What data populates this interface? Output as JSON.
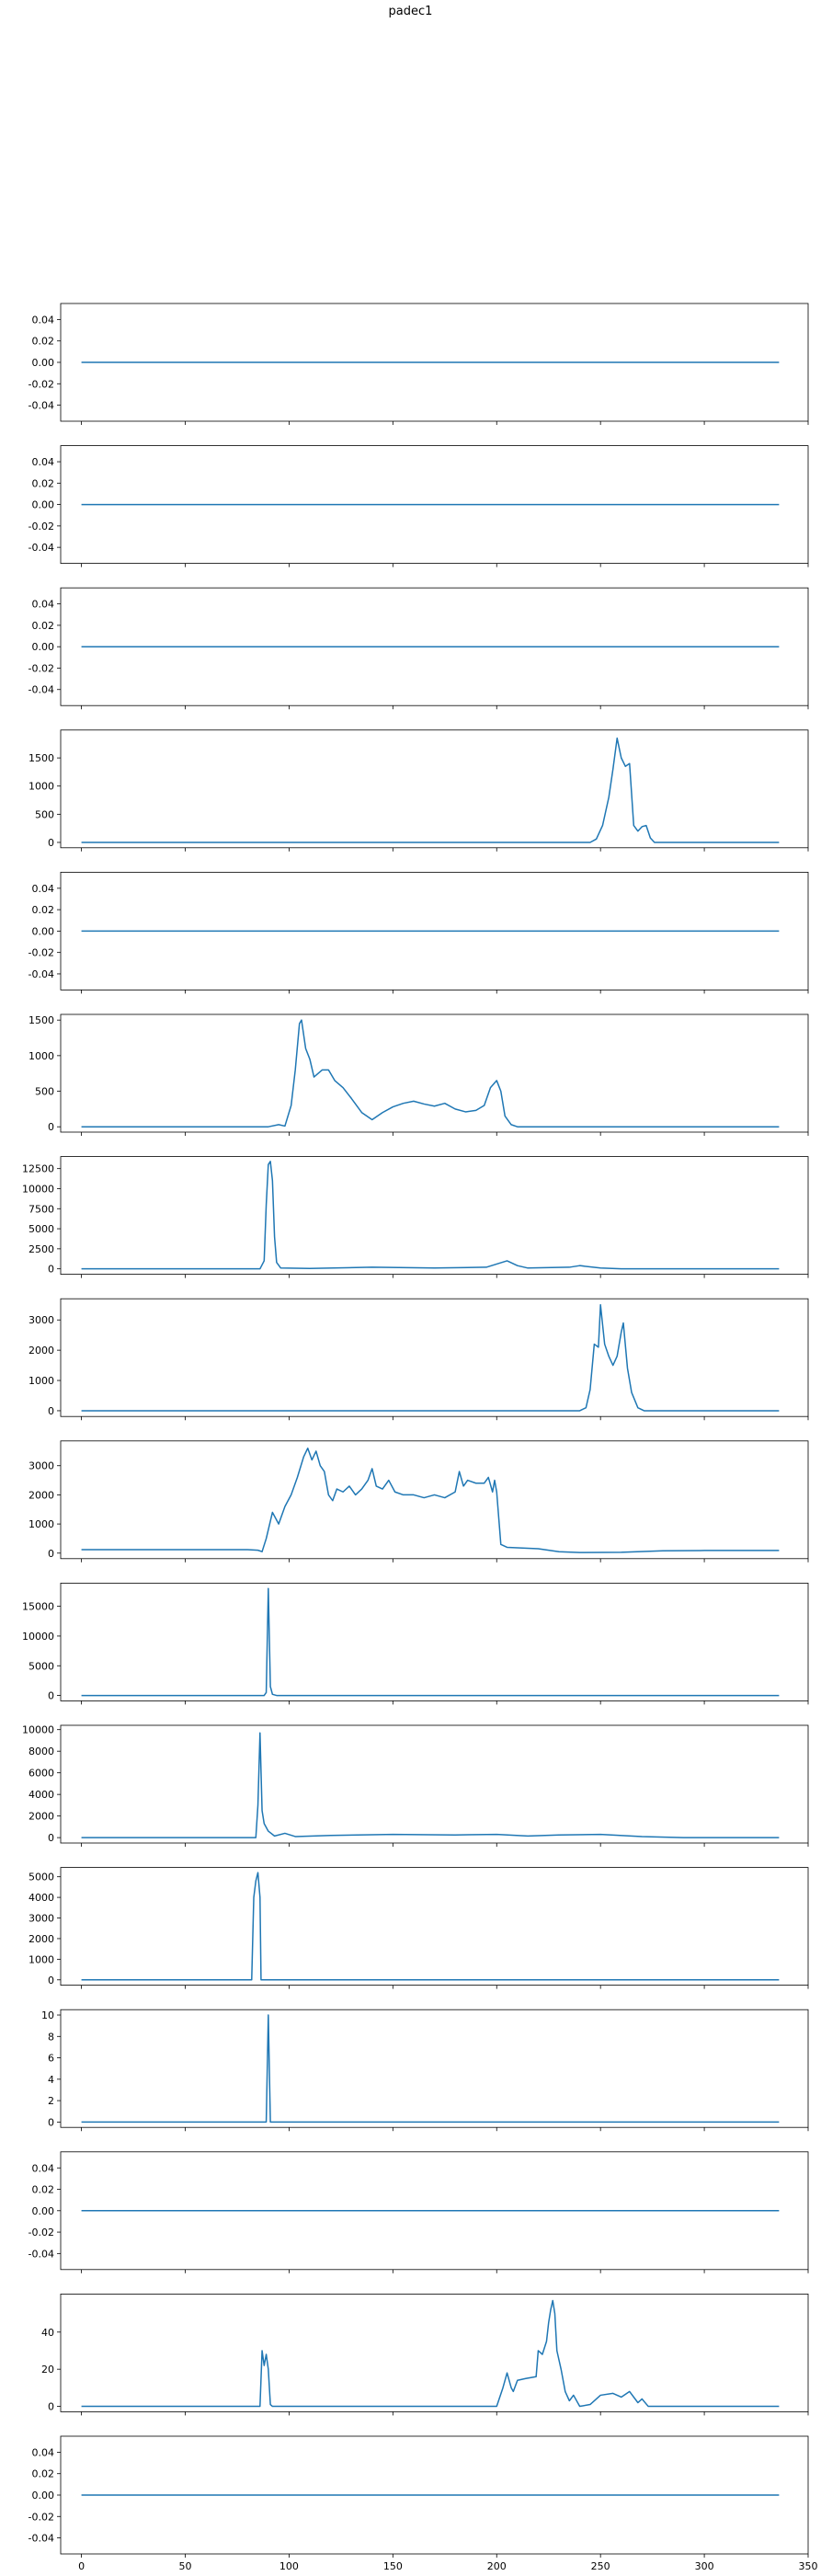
{
  "figure": {
    "title": "padec1"
  },
  "chart_data": {
    "type": "line",
    "title": "padec1",
    "line_color": "#1f77b4",
    "sharex": true,
    "xlim": [
      -10,
      350
    ],
    "x_ticks": [
      0,
      50,
      100,
      150,
      200,
      250,
      300,
      350
    ],
    "x_tick_labels": [
      "0",
      "50",
      "100",
      "150",
      "200",
      "250",
      "300",
      "350"
    ],
    "n_points": 337,
    "grid": false,
    "subplots": [
      {
        "ylim": [
          -0.055,
          0.055
        ],
        "y_ticks": [
          -0.04,
          -0.02,
          0.0,
          0.02,
          0.04
        ],
        "y_tick_labels": [
          "-0.04",
          "-0.02",
          "0.00",
          "0.02",
          "0.04"
        ],
        "baseline": 0,
        "points": [
          [
            0,
            0
          ],
          [
            336,
            0
          ]
        ]
      },
      {
        "ylim": [
          -0.055,
          0.055
        ],
        "y_ticks": [
          -0.04,
          -0.02,
          0.0,
          0.02,
          0.04
        ],
        "y_tick_labels": [
          "-0.04",
          "-0.02",
          "0.00",
          "0.02",
          "0.04"
        ],
        "baseline": 0,
        "points": [
          [
            0,
            0
          ],
          [
            336,
            0
          ]
        ]
      },
      {
        "ylim": [
          -0.055,
          0.055
        ],
        "y_ticks": [
          -0.04,
          -0.02,
          0.0,
          0.02,
          0.04
        ],
        "y_tick_labels": [
          "-0.04",
          "-0.02",
          "0.00",
          "0.02",
          "0.04"
        ],
        "baseline": 0,
        "points": [
          [
            0,
            0
          ],
          [
            336,
            0
          ]
        ]
      },
      {
        "ylim": [
          -95,
          1995
        ],
        "y_ticks": [
          0,
          500,
          1000,
          1500
        ],
        "y_tick_labels": [
          "0",
          "500",
          "1000",
          "1500"
        ],
        "baseline": 0,
        "points": [
          [
            0,
            0
          ],
          [
            245,
            0
          ],
          [
            248,
            60
          ],
          [
            251,
            300
          ],
          [
            254,
            800
          ],
          [
            256,
            1300
          ],
          [
            258,
            1850
          ],
          [
            260,
            1500
          ],
          [
            262,
            1350
          ],
          [
            264,
            1400
          ],
          [
            266,
            300
          ],
          [
            268,
            200
          ],
          [
            270,
            280
          ],
          [
            272,
            300
          ],
          [
            274,
            80
          ],
          [
            276,
            0
          ],
          [
            336,
            0
          ]
        ]
      },
      {
        "ylim": [
          -0.055,
          0.055
        ],
        "y_ticks": [
          -0.04,
          -0.02,
          0.0,
          0.02,
          0.04
        ],
        "y_tick_labels": [
          "-0.04",
          "-0.02",
          "0.00",
          "0.02",
          "0.04"
        ],
        "baseline": 0,
        "points": [
          [
            0,
            0
          ],
          [
            336,
            0
          ]
        ]
      },
      {
        "ylim": [
          -75,
          1580
        ],
        "y_ticks": [
          0,
          500,
          1000,
          1500
        ],
        "y_tick_labels": [
          "0",
          "500",
          "1000",
          "1500"
        ],
        "baseline": 0,
        "points": [
          [
            0,
            0
          ],
          [
            90,
            0
          ],
          [
            95,
            30
          ],
          [
            98,
            10
          ],
          [
            101,
            300
          ],
          [
            103,
            800
          ],
          [
            105,
            1450
          ],
          [
            106,
            1500
          ],
          [
            108,
            1100
          ],
          [
            110,
            950
          ],
          [
            112,
            700
          ],
          [
            116,
            800
          ],
          [
            119,
            800
          ],
          [
            122,
            650
          ],
          [
            126,
            550
          ],
          [
            130,
            400
          ],
          [
            135,
            200
          ],
          [
            140,
            100
          ],
          [
            145,
            200
          ],
          [
            150,
            280
          ],
          [
            155,
            330
          ],
          [
            160,
            360
          ],
          [
            165,
            320
          ],
          [
            170,
            290
          ],
          [
            175,
            330
          ],
          [
            180,
            250
          ],
          [
            185,
            210
          ],
          [
            190,
            230
          ],
          [
            194,
            300
          ],
          [
            197,
            550
          ],
          [
            200,
            650
          ],
          [
            202,
            500
          ],
          [
            204,
            150
          ],
          [
            207,
            30
          ],
          [
            210,
            0
          ],
          [
            336,
            0
          ]
        ]
      },
      {
        "ylim": [
          -680,
          14000
        ],
        "y_ticks": [
          0,
          2500,
          5000,
          7500,
          10000,
          12500
        ],
        "y_tick_labels": [
          "0",
          "2500",
          "5000",
          "7500",
          "10000",
          "12500"
        ],
        "baseline": 0,
        "points": [
          [
            0,
            0
          ],
          [
            86,
            0
          ],
          [
            88,
            1000
          ],
          [
            89,
            8000
          ],
          [
            90,
            13000
          ],
          [
            91,
            13400
          ],
          [
            92,
            11000
          ],
          [
            93,
            4000
          ],
          [
            94,
            800
          ],
          [
            96,
            100
          ],
          [
            110,
            50
          ],
          [
            140,
            200
          ],
          [
            170,
            100
          ],
          [
            195,
            200
          ],
          [
            200,
            600
          ],
          [
            205,
            1000
          ],
          [
            210,
            400
          ],
          [
            215,
            100
          ],
          [
            235,
            200
          ],
          [
            240,
            400
          ],
          [
            250,
            100
          ],
          [
            260,
            0
          ],
          [
            336,
            0
          ]
        ]
      },
      {
        "ylim": [
          -190,
          3700
        ],
        "y_ticks": [
          0,
          1000,
          2000,
          3000
        ],
        "y_tick_labels": [
          "0",
          "1000",
          "2000",
          "3000"
        ],
        "baseline": 0,
        "points": [
          [
            0,
            0
          ],
          [
            240,
            0
          ],
          [
            243,
            100
          ],
          [
            245,
            700
          ],
          [
            247,
            2200
          ],
          [
            249,
            2100
          ],
          [
            250,
            3500
          ],
          [
            252,
            2200
          ],
          [
            254,
            1800
          ],
          [
            256,
            1500
          ],
          [
            258,
            1800
          ],
          [
            260,
            2600
          ],
          [
            261,
            2900
          ],
          [
            263,
            1400
          ],
          [
            265,
            600
          ],
          [
            268,
            100
          ],
          [
            271,
            0
          ],
          [
            336,
            0
          ]
        ]
      },
      {
        "ylim": [
          -190,
          3850
        ],
        "y_ticks": [
          0,
          1000,
          2000,
          3000
        ],
        "y_tick_labels": [
          "0",
          "1000",
          "2000",
          "3000"
        ],
        "baseline": 0,
        "points": [
          [
            0,
            120
          ],
          [
            50,
            120
          ],
          [
            80,
            120
          ],
          [
            85,
            100
          ],
          [
            87,
            50
          ],
          [
            89,
            500
          ],
          [
            92,
            1400
          ],
          [
            95,
            1000
          ],
          [
            98,
            1600
          ],
          [
            101,
            2000
          ],
          [
            104,
            2600
          ],
          [
            107,
            3300
          ],
          [
            109,
            3600
          ],
          [
            111,
            3200
          ],
          [
            113,
            3500
          ],
          [
            115,
            3000
          ],
          [
            117,
            2800
          ],
          [
            119,
            2000
          ],
          [
            121,
            1800
          ],
          [
            123,
            2200
          ],
          [
            126,
            2100
          ],
          [
            129,
            2300
          ],
          [
            132,
            2000
          ],
          [
            135,
            2200
          ],
          [
            138,
            2500
          ],
          [
            140,
            2900
          ],
          [
            142,
            2300
          ],
          [
            145,
            2200
          ],
          [
            148,
            2500
          ],
          [
            151,
            2100
          ],
          [
            155,
            2000
          ],
          [
            160,
            2000
          ],
          [
            165,
            1900
          ],
          [
            170,
            2000
          ],
          [
            175,
            1900
          ],
          [
            180,
            2100
          ],
          [
            182,
            2800
          ],
          [
            184,
            2300
          ],
          [
            186,
            2500
          ],
          [
            190,
            2400
          ],
          [
            194,
            2400
          ],
          [
            196,
            2600
          ],
          [
            198,
            2100
          ],
          [
            199,
            2500
          ],
          [
            200,
            2100
          ],
          [
            202,
            300
          ],
          [
            205,
            200
          ],
          [
            220,
            150
          ],
          [
            230,
            50
          ],
          [
            240,
            20
          ],
          [
            260,
            30
          ],
          [
            280,
            80
          ],
          [
            300,
            90
          ],
          [
            336,
            90
          ]
        ]
      },
      {
        "ylim": [
          -900,
          18900
        ],
        "y_ticks": [
          0,
          5000,
          10000,
          15000
        ],
        "y_tick_labels": [
          "0",
          "5000",
          "10000",
          "15000"
        ],
        "baseline": 0,
        "points": [
          [
            0,
            0
          ],
          [
            88,
            0
          ],
          [
            89,
            500
          ],
          [
            90,
            18000
          ],
          [
            91,
            1500
          ],
          [
            92,
            200
          ],
          [
            94,
            0
          ],
          [
            336,
            0
          ]
        ]
      },
      {
        "ylim": [
          -500,
          10400
        ],
        "y_ticks": [
          0,
          2000,
          4000,
          6000,
          8000,
          10000
        ],
        "y_tick_labels": [
          "0",
          "2000",
          "4000",
          "6000",
          "8000",
          "10000"
        ],
        "baseline": 0,
        "points": [
          [
            0,
            0
          ],
          [
            84,
            0
          ],
          [
            85,
            3000
          ],
          [
            86,
            9700
          ],
          [
            87,
            2500
          ],
          [
            88,
            1300
          ],
          [
            90,
            600
          ],
          [
            93,
            150
          ],
          [
            98,
            400
          ],
          [
            103,
            100
          ],
          [
            120,
            200
          ],
          [
            150,
            300
          ],
          [
            180,
            250
          ],
          [
            200,
            300
          ],
          [
            215,
            150
          ],
          [
            230,
            250
          ],
          [
            250,
            300
          ],
          [
            270,
            100
          ],
          [
            290,
            0
          ],
          [
            336,
            0
          ]
        ]
      },
      {
        "ylim": [
          -260,
          5450
        ],
        "y_ticks": [
          0,
          1000,
          2000,
          3000,
          4000,
          5000
        ],
        "y_tick_labels": [
          "0",
          "1000",
          "2000",
          "3000",
          "4000",
          "5000"
        ],
        "baseline": 0,
        "points": [
          [
            0,
            0
          ],
          [
            82,
            0
          ],
          [
            83,
            4000
          ],
          [
            84,
            4800
          ],
          [
            85,
            5200
          ],
          [
            86,
            4000
          ],
          [
            86.5,
            0
          ],
          [
            336,
            0
          ]
        ]
      },
      {
        "ylim": [
          -0.5,
          10.5
        ],
        "y_ticks": [
          0,
          2,
          4,
          6,
          8,
          10
        ],
        "y_tick_labels": [
          "0",
          "2",
          "4",
          "6",
          "8",
          "10"
        ],
        "baseline": 0,
        "points": [
          [
            0,
            0
          ],
          [
            89,
            0
          ],
          [
            90,
            10
          ],
          [
            91,
            0
          ],
          [
            336,
            0
          ]
        ]
      },
      {
        "ylim": [
          -0.055,
          0.055
        ],
        "y_ticks": [
          -0.04,
          -0.02,
          0.0,
          0.02,
          0.04
        ],
        "y_tick_labels": [
          "-0.04",
          "-0.02",
          "0.00",
          "0.02",
          "0.04"
        ],
        "baseline": 0,
        "points": [
          [
            0,
            0
          ],
          [
            336,
            0
          ]
        ]
      },
      {
        "ylim": [
          -2.9,
          60.5
        ],
        "y_ticks": [
          0,
          20,
          40
        ],
        "y_tick_labels": [
          "0",
          "20",
          "40"
        ],
        "baseline": 0,
        "points": [
          [
            0,
            0
          ],
          [
            86,
            0
          ],
          [
            87,
            30
          ],
          [
            88,
            22
          ],
          [
            89,
            28
          ],
          [
            90,
            20
          ],
          [
            91,
            1
          ],
          [
            92,
            0
          ],
          [
            200,
            0
          ],
          [
            203,
            10
          ],
          [
            205,
            18
          ],
          [
            207,
            10
          ],
          [
            208,
            8
          ],
          [
            210,
            14
          ],
          [
            214,
            15
          ],
          [
            219,
            16
          ],
          [
            220,
            30
          ],
          [
            222,
            28
          ],
          [
            224,
            35
          ],
          [
            225,
            45
          ],
          [
            226,
            52
          ],
          [
            227,
            57
          ],
          [
            228,
            50
          ],
          [
            229,
            30
          ],
          [
            231,
            20
          ],
          [
            233,
            8
          ],
          [
            235,
            3
          ],
          [
            237,
            6
          ],
          [
            240,
            0
          ],
          [
            245,
            1
          ],
          [
            250,
            6
          ],
          [
            256,
            7
          ],
          [
            260,
            5
          ],
          [
            264,
            8
          ],
          [
            268,
            2
          ],
          [
            270,
            4
          ],
          [
            273,
            0
          ],
          [
            336,
            0
          ]
        ]
      },
      {
        "ylim": [
          -0.055,
          0.055
        ],
        "y_ticks": [
          -0.04,
          -0.02,
          0.0,
          0.02,
          0.04
        ],
        "y_tick_labels": [
          "-0.04",
          "-0.02",
          "0.00",
          "0.02",
          "0.04"
        ],
        "baseline": 0,
        "points": [
          [
            0,
            0
          ],
          [
            336,
            0
          ]
        ]
      }
    ]
  }
}
